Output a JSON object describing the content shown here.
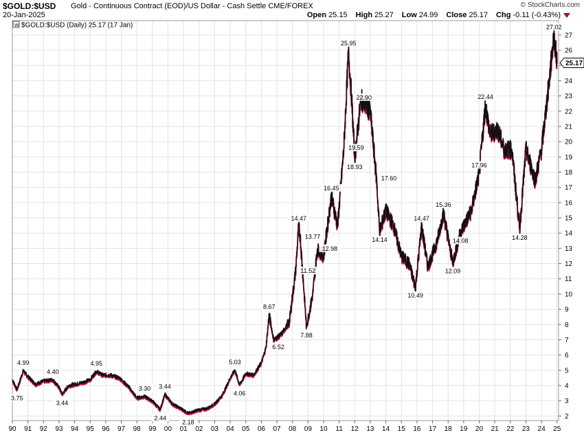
{
  "header": {
    "symbol": "$GOLD:$USD",
    "description": "Gold - Continuous Contract (EOD)/US Dollar - Cash Settle",
    "exchange": "CME/FOREX",
    "date": "20-Jan-2025",
    "brand": "© StockCharts.com",
    "open_label": "Open",
    "open": "25.15",
    "high_label": "High",
    "high": "25.27",
    "low_label": "Low",
    "low": "24.99",
    "close_label": "Close",
    "close": "25.17",
    "chg_label": "Chg",
    "chg": "-0.11 (-0.43%)"
  },
  "chart_data": {
    "type": "line",
    "legend": "$GOLD:$USD (Daily) 25.17 (17 Jan)",
    "last_value_label": "25.17",
    "last_value": 25.17,
    "xlabel": "",
    "ylabel": "",
    "ylim": [
      1.7,
      27.4
    ],
    "xlim": [
      1990.0,
      2025.1
    ],
    "yticks": [
      2,
      3,
      4,
      5,
      6,
      7,
      8,
      9,
      10,
      11,
      12,
      13,
      14,
      15,
      16,
      17,
      18,
      19,
      20,
      21,
      22,
      23,
      24,
      25,
      26,
      27
    ],
    "xticks": [
      {
        "year": 1990,
        "label": "90"
      },
      {
        "year": 1991,
        "label": "91"
      },
      {
        "year": 1992,
        "label": "92"
      },
      {
        "year": 1993,
        "label": "93"
      },
      {
        "year": 1994,
        "label": "94"
      },
      {
        "year": 1995,
        "label": "95"
      },
      {
        "year": 1996,
        "label": "96"
      },
      {
        "year": 1997,
        "label": "97"
      },
      {
        "year": 1998,
        "label": "98"
      },
      {
        "year": 1999,
        "label": "99"
      },
      {
        "year": 2000,
        "label": "00"
      },
      {
        "year": 2001,
        "label": "01"
      },
      {
        "year": 2002,
        "label": "02"
      },
      {
        "year": 2003,
        "label": "03"
      },
      {
        "year": 2004,
        "label": "04"
      },
      {
        "year": 2005,
        "label": "05"
      },
      {
        "year": 2006,
        "label": "06"
      },
      {
        "year": 2007,
        "label": "07"
      },
      {
        "year": 2008,
        "label": "08"
      },
      {
        "year": 2009,
        "label": "09"
      },
      {
        "year": 2010,
        "label": "10"
      },
      {
        "year": 2011,
        "label": "11"
      },
      {
        "year": 2012,
        "label": "12"
      },
      {
        "year": 2013,
        "label": "13"
      },
      {
        "year": 2014,
        "label": "14"
      },
      {
        "year": 2015,
        "label": "15"
      },
      {
        "year": 2016,
        "label": "16"
      },
      {
        "year": 2017,
        "label": "17"
      },
      {
        "year": 2018,
        "label": "18"
      },
      {
        "year": 2019,
        "label": "19"
      },
      {
        "year": 2020,
        "label": "20"
      },
      {
        "year": 2021,
        "label": "21"
      },
      {
        "year": 2022,
        "label": "22"
      },
      {
        "year": 2023,
        "label": "23"
      },
      {
        "year": 2024,
        "label": "24"
      },
      {
        "year": 2025,
        "label": "25"
      }
    ],
    "series": [
      {
        "name": "$GOLD:$USD",
        "points": [
          [
            1990.0,
            4.4
          ],
          [
            1990.3,
            3.75
          ],
          [
            1990.7,
            4.99
          ],
          [
            1991.0,
            4.6
          ],
          [
            1991.5,
            4.1
          ],
          [
            1992.0,
            4.3
          ],
          [
            1992.6,
            4.4
          ],
          [
            1993.0,
            3.9
          ],
          [
            1993.2,
            3.44
          ],
          [
            1993.6,
            4.0
          ],
          [
            1994.0,
            4.1
          ],
          [
            1994.5,
            4.2
          ],
          [
            1995.0,
            4.4
          ],
          [
            1995.4,
            4.95
          ],
          [
            1995.8,
            4.7
          ],
          [
            1996.3,
            4.7
          ],
          [
            1996.9,
            4.5
          ],
          [
            1997.5,
            3.9
          ],
          [
            1998.0,
            3.2
          ],
          [
            1998.5,
            3.3
          ],
          [
            1999.0,
            3.0
          ],
          [
            1999.5,
            2.44
          ],
          [
            1999.8,
            3.44
          ],
          [
            2000.3,
            2.8
          ],
          [
            2001.0,
            2.4
          ],
          [
            2001.3,
            2.18
          ],
          [
            2001.9,
            2.4
          ],
          [
            2002.5,
            2.5
          ],
          [
            2003.0,
            2.8
          ],
          [
            2003.5,
            3.4
          ],
          [
            2004.0,
            4.5
          ],
          [
            2004.3,
            5.03
          ],
          [
            2004.6,
            4.06
          ],
          [
            2005.0,
            4.8
          ],
          [
            2005.5,
            4.7
          ],
          [
            2006.0,
            5.5
          ],
          [
            2006.3,
            6.52
          ],
          [
            2006.5,
            8.67
          ],
          [
            2006.8,
            7.0
          ],
          [
            2007.3,
            7.4
          ],
          [
            2007.8,
            8.2
          ],
          [
            2008.2,
            11.52
          ],
          [
            2008.4,
            14.47
          ],
          [
            2008.5,
            13.77
          ],
          [
            2008.9,
            7.88
          ],
          [
            2009.3,
            10.0
          ],
          [
            2009.6,
            12.98
          ],
          [
            2010.0,
            12.5
          ],
          [
            2010.5,
            16.45
          ],
          [
            2010.9,
            14.5
          ],
          [
            2011.3,
            19.59
          ],
          [
            2011.6,
            25.95
          ],
          [
            2011.8,
            22.9
          ],
          [
            2012.0,
            18.93
          ],
          [
            2012.4,
            22.8
          ],
          [
            2013.0,
            22.0
          ],
          [
            2013.4,
            17.6
          ],
          [
            2013.6,
            14.14
          ],
          [
            2014.0,
            15.5
          ],
          [
            2014.5,
            14.5
          ],
          [
            2015.0,
            12.5
          ],
          [
            2015.5,
            12.0
          ],
          [
            2015.9,
            10.49
          ],
          [
            2016.3,
            14.47
          ],
          [
            2016.7,
            11.8
          ],
          [
            2017.3,
            13.5
          ],
          [
            2017.7,
            15.36
          ],
          [
            2018.3,
            12.09
          ],
          [
            2018.8,
            14.08
          ],
          [
            2019.5,
            15.5
          ],
          [
            2020.0,
            17.96
          ],
          [
            2020.4,
            22.44
          ],
          [
            2020.7,
            20.5
          ],
          [
            2021.2,
            20.8
          ],
          [
            2021.6,
            19.5
          ],
          [
            2022.1,
            19.5
          ],
          [
            2022.6,
            14.28
          ],
          [
            2023.0,
            19.5
          ],
          [
            2023.6,
            17.5
          ],
          [
            2024.0,
            19.5
          ],
          [
            2024.5,
            24.0
          ],
          [
            2024.8,
            27.02
          ],
          [
            2025.0,
            25.17
          ]
        ]
      }
    ],
    "annotations": [
      {
        "x": 1990.7,
        "y": 4.99,
        "text": "4.99",
        "pos": "above"
      },
      {
        "x": 1990.3,
        "y": 3.75,
        "text": "3.75",
        "pos": "below"
      },
      {
        "x": 1992.6,
        "y": 4.4,
        "text": "4.40",
        "pos": "above"
      },
      {
        "x": 1993.2,
        "y": 3.44,
        "text": "3.44",
        "pos": "below"
      },
      {
        "x": 1995.4,
        "y": 4.95,
        "text": "4.95",
        "pos": "above"
      },
      {
        "x": 1998.5,
        "y": 3.3,
        "text": "3.30",
        "pos": "above"
      },
      {
        "x": 1999.8,
        "y": 3.44,
        "text": "3.44",
        "pos": "above"
      },
      {
        "x": 1999.5,
        "y": 2.44,
        "text": "2.44",
        "pos": "below"
      },
      {
        "x": 2001.3,
        "y": 2.18,
        "text": "2.18",
        "pos": "below"
      },
      {
        "x": 2004.3,
        "y": 5.03,
        "text": "5.03",
        "pos": "above"
      },
      {
        "x": 2004.6,
        "y": 4.06,
        "text": "4.06",
        "pos": "below"
      },
      {
        "x": 2006.3,
        "y": 6.52,
        "text": "6.52",
        "pos": "right"
      },
      {
        "x": 2006.5,
        "y": 8.67,
        "text": "8.67",
        "pos": "above"
      },
      {
        "x": 2008.4,
        "y": 14.47,
        "text": "14.47",
        "pos": "above"
      },
      {
        "x": 2008.5,
        "y": 13.77,
        "text": "13.77",
        "pos": "right"
      },
      {
        "x": 2008.2,
        "y": 11.52,
        "text": "11.52",
        "pos": "right"
      },
      {
        "x": 2008.9,
        "y": 7.88,
        "text": "7.88",
        "pos": "below"
      },
      {
        "x": 2009.6,
        "y": 12.98,
        "text": "12.98",
        "pos": "right"
      },
      {
        "x": 2010.5,
        "y": 16.45,
        "text": "16.45",
        "pos": "above"
      },
      {
        "x": 2011.6,
        "y": 25.95,
        "text": "25.95",
        "pos": "above"
      },
      {
        "x": 2011.8,
        "y": 22.9,
        "text": "22.90",
        "pos": "right"
      },
      {
        "x": 2011.3,
        "y": 19.59,
        "text": "19.59",
        "pos": "right"
      },
      {
        "x": 2012.0,
        "y": 18.93,
        "text": "18.93",
        "pos": "below"
      },
      {
        "x": 2013.4,
        "y": 17.6,
        "text": "17.60",
        "pos": "right"
      },
      {
        "x": 2013.6,
        "y": 14.14,
        "text": "14.14",
        "pos": "below"
      },
      {
        "x": 2015.9,
        "y": 10.49,
        "text": "10.49",
        "pos": "below"
      },
      {
        "x": 2016.3,
        "y": 14.47,
        "text": "14.47",
        "pos": "above"
      },
      {
        "x": 2017.7,
        "y": 15.36,
        "text": "15.36",
        "pos": "above"
      },
      {
        "x": 2018.3,
        "y": 12.09,
        "text": "12.09",
        "pos": "below"
      },
      {
        "x": 2018.8,
        "y": 14.08,
        "text": "14.08",
        "pos": "below"
      },
      {
        "x": 2020.0,
        "y": 17.96,
        "text": "17.96",
        "pos": "above"
      },
      {
        "x": 2020.4,
        "y": 22.44,
        "text": "22.44",
        "pos": "above"
      },
      {
        "x": 2022.6,
        "y": 14.28,
        "text": "14.28",
        "pos": "below"
      },
      {
        "x": 2024.8,
        "y": 27.02,
        "text": "27.02",
        "pos": "above"
      }
    ]
  }
}
